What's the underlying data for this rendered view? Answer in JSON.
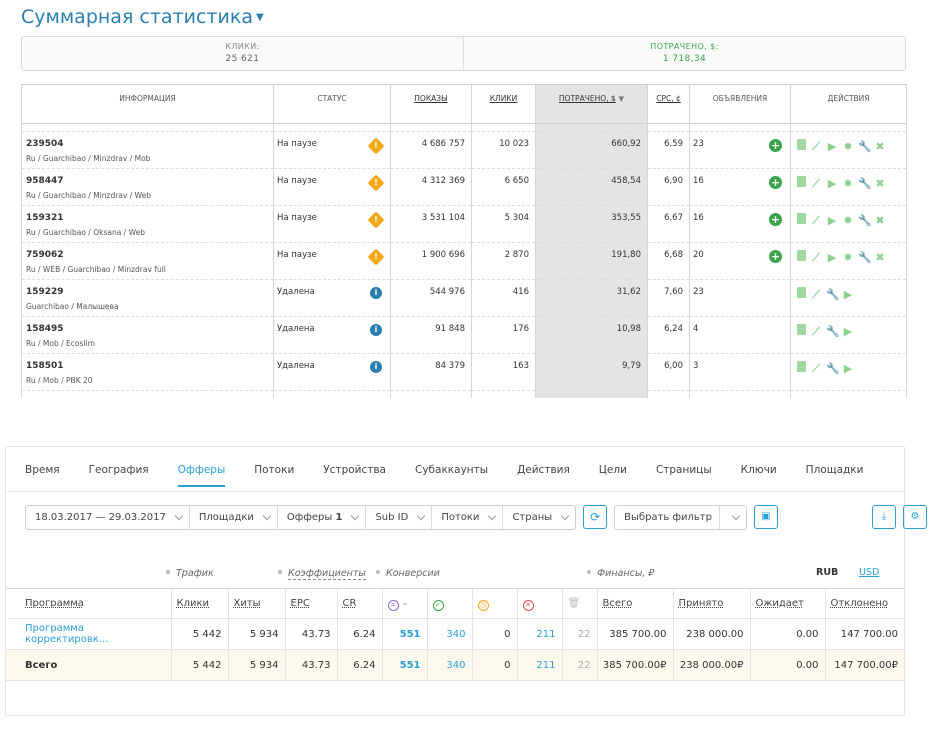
{
  "title": "Суммарная статистика",
  "summary": {
    "clicks_label": "КЛИКИ:",
    "clicks_value": "25 621",
    "spent_label": "ПОТРАЧЕНО, $:",
    "spent_value": "1 718,34"
  },
  "campaigns": {
    "headers": {
      "info": "ИНФОРМАЦИЯ",
      "status": "СТАТУС",
      "impressions": "ПОКАЗЫ",
      "clicks": "КЛИКИ",
      "spent": "ПОТРАЧЕНО, $",
      "cpc": "CPC, ¢",
      "ads": "ОБЪЯВЛЕНИЯ",
      "actions": "ДЕЙСТВИЯ"
    },
    "rows": [
      {
        "id": "239504",
        "sub": "Ru / Guarchibao / Minzdrav / Mob",
        "status": "На паузе",
        "status_icon": "warning-icon",
        "impressions": "4 686 757",
        "clicks": "10 023",
        "spent": "660,92",
        "cpc": "6,59",
        "ads": "23",
        "paused": true
      },
      {
        "id": "958447",
        "sub": "Ru / Guarchibao / Minzdrav / Web",
        "status": "На паузе",
        "status_icon": "warning-icon",
        "impressions": "4 312 369",
        "clicks": "6 650",
        "spent": "458,54",
        "cpc": "6,90",
        "ads": "16",
        "paused": true
      },
      {
        "id": "159321",
        "sub": "Ru / Guarchibao / Oksana / Web",
        "status": "На паузе",
        "status_icon": "warning-icon",
        "impressions": "3 531 104",
        "clicks": "5 304",
        "spent": "353,55",
        "cpc": "6,67",
        "ads": "16",
        "paused": true
      },
      {
        "id": "759062",
        "sub": "Ru / WEB / Guarchibao / Minzdrav full",
        "status": "На паузе",
        "status_icon": "warning-icon",
        "impressions": "1 900 696",
        "clicks": "2 870",
        "spent": "191,80",
        "cpc": "6,68",
        "ads": "20",
        "paused": true
      },
      {
        "id": "159229",
        "sub": "Guarchibao / Малышева",
        "status": "Удалена",
        "status_icon": "info-icon",
        "impressions": "544 976",
        "clicks": "416",
        "spent": "31,62",
        "cpc": "7,60",
        "ads": "23",
        "paused": false
      },
      {
        "id": "158495",
        "sub": "Ru / Mob / Ecoslim",
        "status": "Удалена",
        "status_icon": "info-icon",
        "impressions": "91 848",
        "clicks": "176",
        "spent": "10,98",
        "cpc": "6,24",
        "ads": "4",
        "paused": false
      },
      {
        "id": "158501",
        "sub": "Ru / Mob / PBK 20",
        "status": "Удалена",
        "status_icon": "info-icon",
        "impressions": "84 379",
        "clicks": "163",
        "spent": "9,79",
        "cpc": "6,00",
        "ads": "3",
        "paused": false
      }
    ]
  },
  "report": {
    "tabs": [
      "Время",
      "География",
      "Офферы",
      "Потоки",
      "Устройства",
      "Субаккаунты",
      "Действия",
      "Цели",
      "Страницы",
      "Ключи",
      "Площадки"
    ],
    "active_tab": "Офферы",
    "filters": {
      "date_range": "18.03.2017 — 29.03.2017",
      "platforms": "Площадки",
      "offers": "Офферы",
      "offers_count": "1",
      "sub_id": "Sub ID",
      "streams": "Потоки",
      "countries": "Страны",
      "choose_filter": "Выбрать фильтр"
    },
    "groups": {
      "traffic": "Трафик",
      "coefficients": "Коэффициенты",
      "conversions": "Конверсии",
      "finance": "Финансы, ₽"
    },
    "currency": {
      "rub": "RUB",
      "usd": "USD"
    },
    "columns": {
      "program": "Программа",
      "clicks": "Клики",
      "hits": "Хиты",
      "epc": "EPC",
      "cr": "CR",
      "total": "Всего",
      "accepted": "Принято",
      "pending": "Ожидает",
      "rejected": "Отклонено"
    },
    "rows": [
      {
        "program": "Программа корректировк...",
        "clicks": "5 442",
        "hits": "5 934",
        "epc": "43.73",
        "cr": "6.24",
        "conv_all": "551",
        "conv_ok": "340",
        "conv_wait": "0",
        "conv_rej": "211",
        "conv_trash": "22",
        "total": "385 700.00",
        "accepted": "238 000.00",
        "pending": "0.00",
        "rejected": "147 700.00"
      }
    ],
    "totals": {
      "program": "Всего",
      "clicks": "5 442",
      "hits": "5 934",
      "epc": "43.73",
      "cr": "6.24",
      "conv_all": "551",
      "conv_ok": "340",
      "conv_wait": "0",
      "conv_rej": "211",
      "conv_trash": "22",
      "total": "385 700.00₽",
      "accepted": "238 000.00₽",
      "pending": "0.00",
      "rejected": "147 700.00₽"
    }
  }
}
